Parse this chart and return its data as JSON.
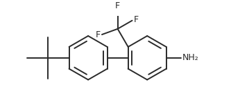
{
  "bg_color": "#ffffff",
  "line_color": "#2a2a2a",
  "line_width": 1.4,
  "label_NH2": "NH₂",
  "label_F1": "F",
  "label_F2": "F",
  "label_F3": "F",
  "figsize": [
    3.46,
    1.55
  ],
  "dpi": 100
}
